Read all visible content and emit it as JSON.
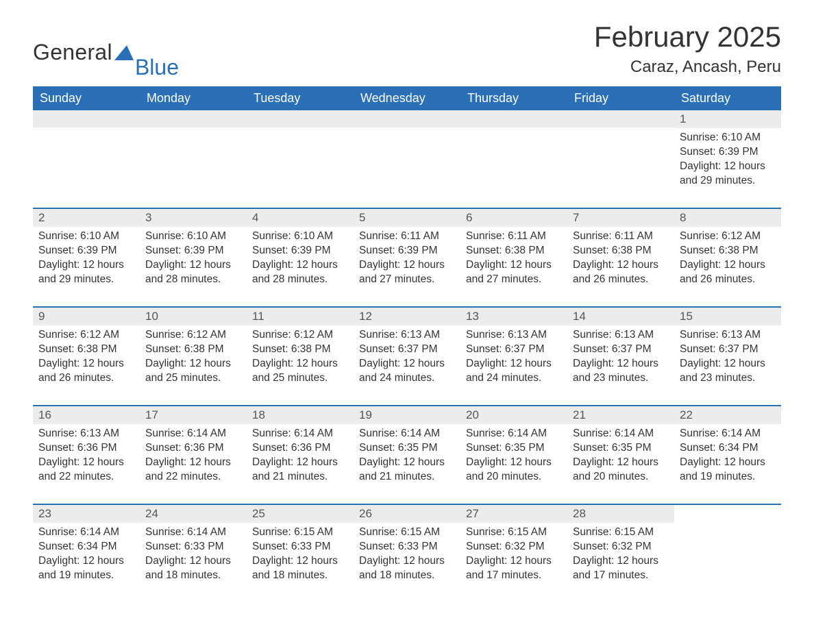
{
  "logo": {
    "part1": "General",
    "part2": "Blue",
    "accent_color": "#2970b8"
  },
  "title": "February 2025",
  "location": "Caraz, Ancash, Peru",
  "colors": {
    "header_bg": "#2970b8",
    "header_text": "#ffffff",
    "daynum_bg": "#ececec",
    "body_text": "#333333",
    "row_border": "#2970b8"
  },
  "typography": {
    "title_fontsize": 42,
    "location_fontsize": 24,
    "weekday_fontsize": 18,
    "detail_fontsize": 15.5
  },
  "weekdays": [
    "Sunday",
    "Monday",
    "Tuesday",
    "Wednesday",
    "Thursday",
    "Friday",
    "Saturday"
  ],
  "labels": {
    "sunrise": "Sunrise:",
    "sunset": "Sunset:",
    "daylight": "Daylight:"
  },
  "weeks": [
    [
      null,
      null,
      null,
      null,
      null,
      null,
      {
        "day": "1",
        "sunrise": "6:10 AM",
        "sunset": "6:39 PM",
        "daylight": "12 hours and 29 minutes."
      }
    ],
    [
      {
        "day": "2",
        "sunrise": "6:10 AM",
        "sunset": "6:39 PM",
        "daylight": "12 hours and 29 minutes."
      },
      {
        "day": "3",
        "sunrise": "6:10 AM",
        "sunset": "6:39 PM",
        "daylight": "12 hours and 28 minutes."
      },
      {
        "day": "4",
        "sunrise": "6:10 AM",
        "sunset": "6:39 PM",
        "daylight": "12 hours and 28 minutes."
      },
      {
        "day": "5",
        "sunrise": "6:11 AM",
        "sunset": "6:39 PM",
        "daylight": "12 hours and 27 minutes."
      },
      {
        "day": "6",
        "sunrise": "6:11 AM",
        "sunset": "6:38 PM",
        "daylight": "12 hours and 27 minutes."
      },
      {
        "day": "7",
        "sunrise": "6:11 AM",
        "sunset": "6:38 PM",
        "daylight": "12 hours and 26 minutes."
      },
      {
        "day": "8",
        "sunrise": "6:12 AM",
        "sunset": "6:38 PM",
        "daylight": "12 hours and 26 minutes."
      }
    ],
    [
      {
        "day": "9",
        "sunrise": "6:12 AM",
        "sunset": "6:38 PM",
        "daylight": "12 hours and 26 minutes."
      },
      {
        "day": "10",
        "sunrise": "6:12 AM",
        "sunset": "6:38 PM",
        "daylight": "12 hours and 25 minutes."
      },
      {
        "day": "11",
        "sunrise": "6:12 AM",
        "sunset": "6:38 PM",
        "daylight": "12 hours and 25 minutes."
      },
      {
        "day": "12",
        "sunrise": "6:13 AM",
        "sunset": "6:37 PM",
        "daylight": "12 hours and 24 minutes."
      },
      {
        "day": "13",
        "sunrise": "6:13 AM",
        "sunset": "6:37 PM",
        "daylight": "12 hours and 24 minutes."
      },
      {
        "day": "14",
        "sunrise": "6:13 AM",
        "sunset": "6:37 PM",
        "daylight": "12 hours and 23 minutes."
      },
      {
        "day": "15",
        "sunrise": "6:13 AM",
        "sunset": "6:37 PM",
        "daylight": "12 hours and 23 minutes."
      }
    ],
    [
      {
        "day": "16",
        "sunrise": "6:13 AM",
        "sunset": "6:36 PM",
        "daylight": "12 hours and 22 minutes."
      },
      {
        "day": "17",
        "sunrise": "6:14 AM",
        "sunset": "6:36 PM",
        "daylight": "12 hours and 22 minutes."
      },
      {
        "day": "18",
        "sunrise": "6:14 AM",
        "sunset": "6:36 PM",
        "daylight": "12 hours and 21 minutes."
      },
      {
        "day": "19",
        "sunrise": "6:14 AM",
        "sunset": "6:35 PM",
        "daylight": "12 hours and 21 minutes."
      },
      {
        "day": "20",
        "sunrise": "6:14 AM",
        "sunset": "6:35 PM",
        "daylight": "12 hours and 20 minutes."
      },
      {
        "day": "21",
        "sunrise": "6:14 AM",
        "sunset": "6:35 PM",
        "daylight": "12 hours and 20 minutes."
      },
      {
        "day": "22",
        "sunrise": "6:14 AM",
        "sunset": "6:34 PM",
        "daylight": "12 hours and 19 minutes."
      }
    ],
    [
      {
        "day": "23",
        "sunrise": "6:14 AM",
        "sunset": "6:34 PM",
        "daylight": "12 hours and 19 minutes."
      },
      {
        "day": "24",
        "sunrise": "6:14 AM",
        "sunset": "6:33 PM",
        "daylight": "12 hours and 18 minutes."
      },
      {
        "day": "25",
        "sunrise": "6:15 AM",
        "sunset": "6:33 PM",
        "daylight": "12 hours and 18 minutes."
      },
      {
        "day": "26",
        "sunrise": "6:15 AM",
        "sunset": "6:33 PM",
        "daylight": "12 hours and 18 minutes."
      },
      {
        "day": "27",
        "sunrise": "6:15 AM",
        "sunset": "6:32 PM",
        "daylight": "12 hours and 17 minutes."
      },
      {
        "day": "28",
        "sunrise": "6:15 AM",
        "sunset": "6:32 PM",
        "daylight": "12 hours and 17 minutes."
      },
      null
    ]
  ]
}
